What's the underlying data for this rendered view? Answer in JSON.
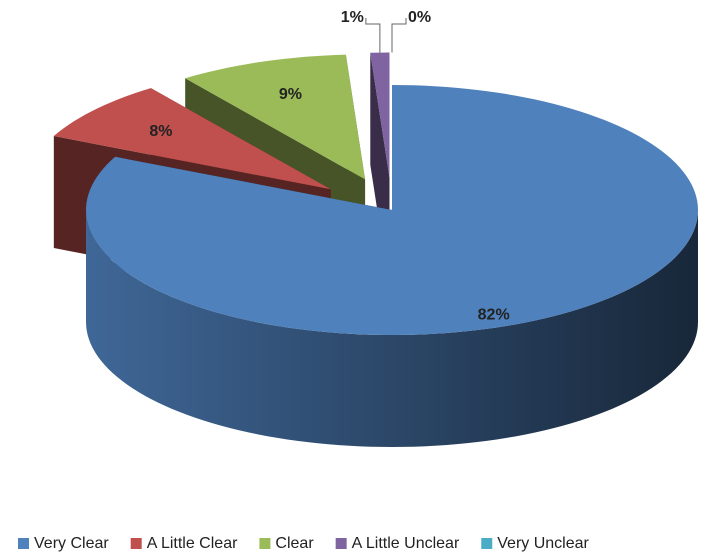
{
  "chart_data": {
    "type": "pie3d",
    "categories": [
      "Very Clear",
      "A Little Clear",
      "Clear",
      "A Little Unclear",
      "Very Unclear"
    ],
    "values": [
      82,
      8,
      9,
      1,
      0
    ],
    "value_labels": [
      "82%",
      "8%",
      "9%",
      "1%",
      "0%"
    ],
    "colors": [
      "#4f81bd",
      "#c0504d",
      "#9bbb59",
      "#8064a2",
      "#4bacc6"
    ],
    "legend": "bottom"
  }
}
